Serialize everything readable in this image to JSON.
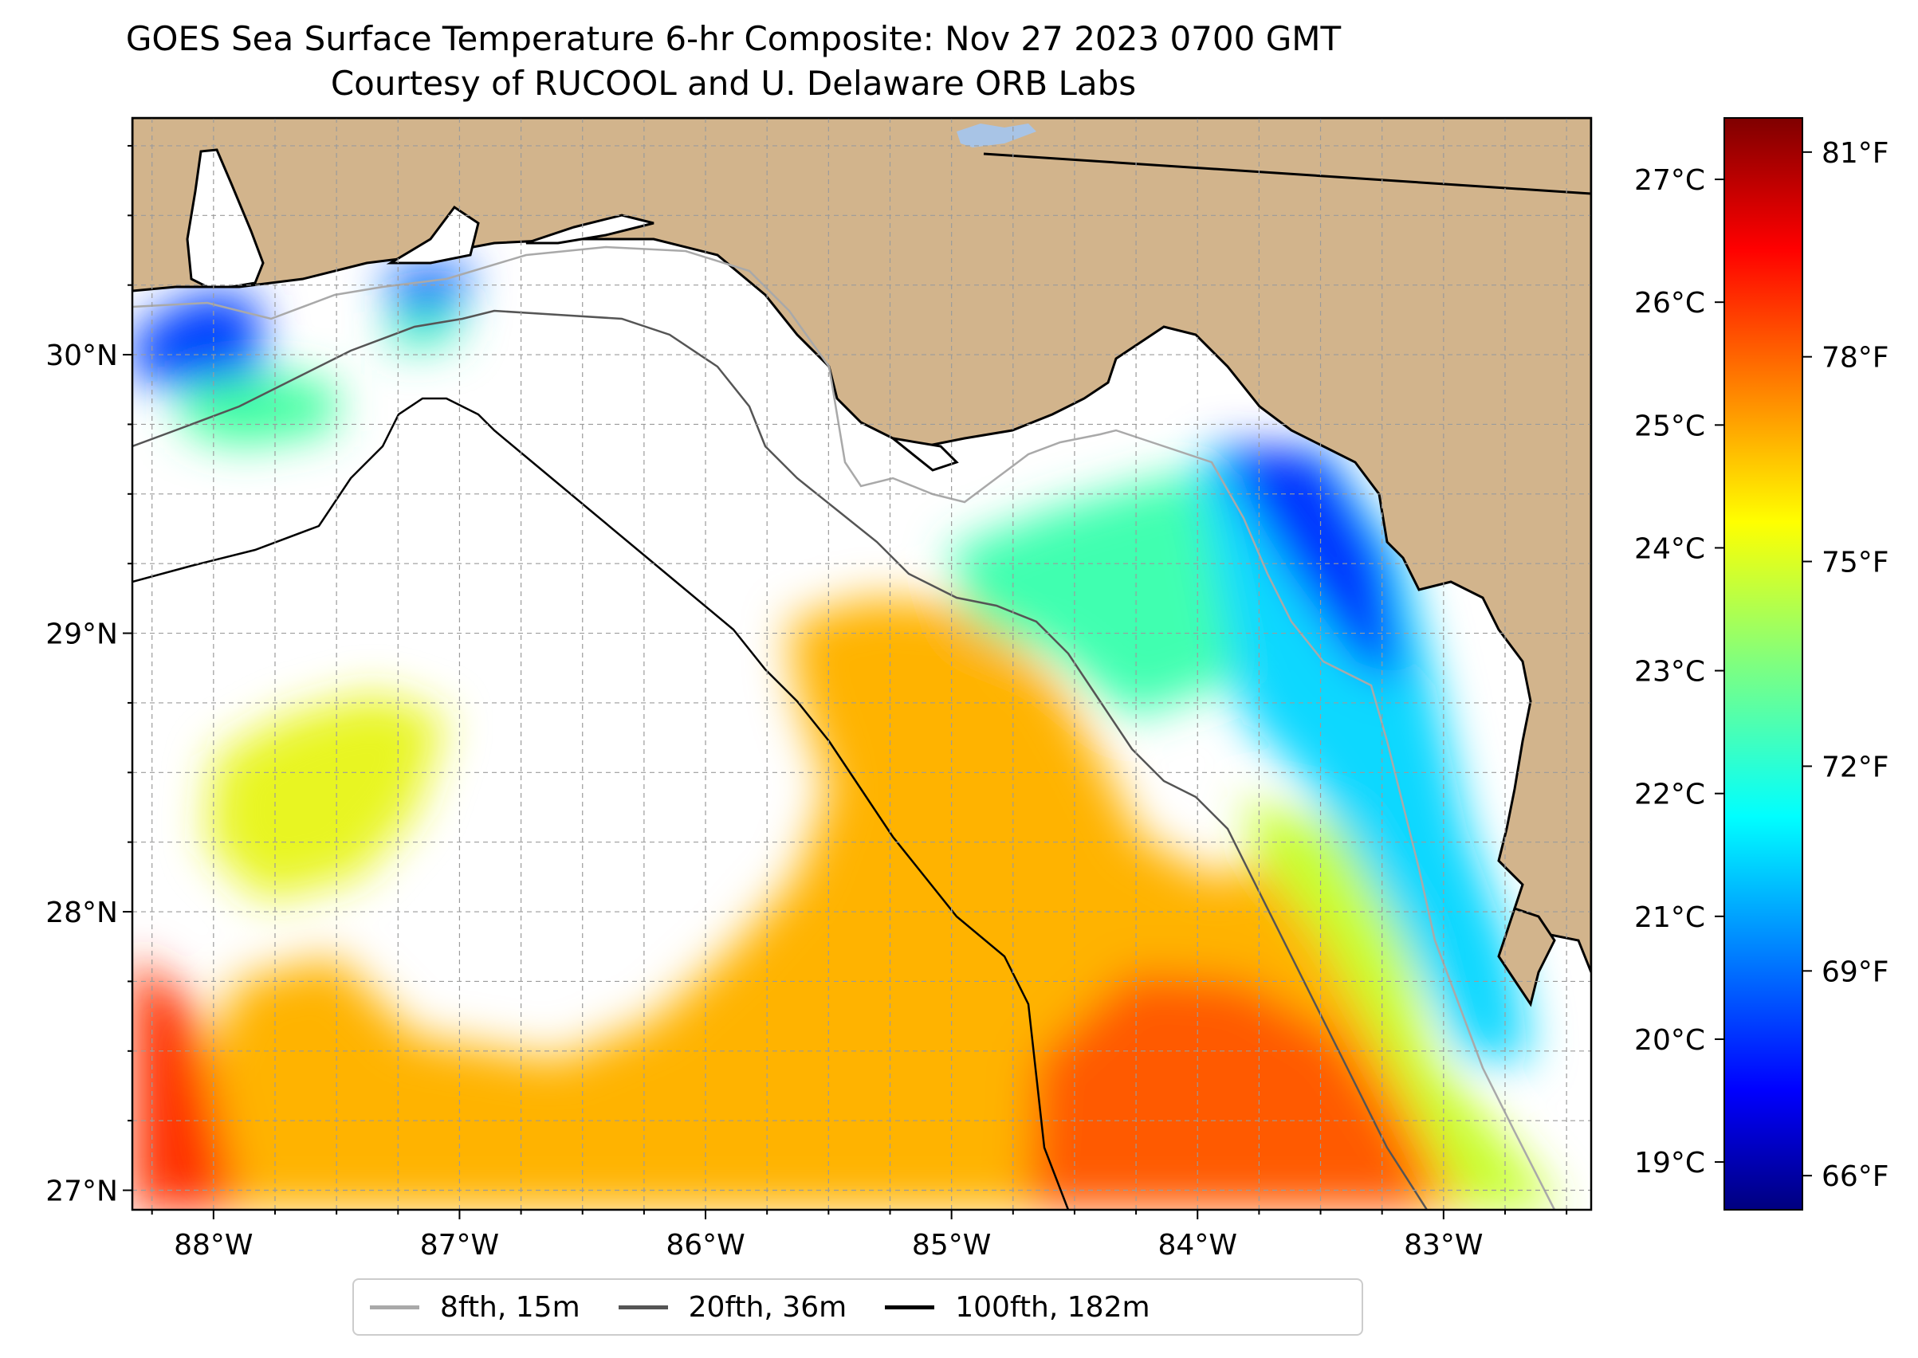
{
  "title": {
    "line1": "GOES Sea Surface Temperature 6-hr Composite: Nov 27 2023 0700 GMT",
    "line2": "Courtesy of RUCOOL and U. Delaware ORB Labs"
  },
  "map": {
    "lon_range": [
      -88.33,
      -82.4
    ],
    "lat_range": [
      26.93,
      30.85
    ],
    "lon_ticks": [
      "88°W",
      "87°W",
      "86°W",
      "85°W",
      "84°W",
      "83°W"
    ],
    "lat_ticks": [
      "27°N",
      "28°N",
      "29°N",
      "30°N"
    ],
    "land_color": "#d2b48c",
    "no_data_color": "#ffffff"
  },
  "legend": {
    "items": [
      {
        "label": "8fth, 15m",
        "color": "#a9a9a9"
      },
      {
        "label": "20fth, 36m",
        "color": "#555555"
      },
      {
        "label": "100fth, 182m",
        "color": "#000000"
      }
    ]
  },
  "colorbar": {
    "colormap": "jet",
    "celsius_ticks": [
      "19°C",
      "20°C",
      "21°C",
      "22°C",
      "23°C",
      "24°C",
      "25°C",
      "26°C",
      "27°C"
    ],
    "fahrenheit_ticks": [
      "66°F",
      "69°F",
      "72°F",
      "75°F",
      "78°F",
      "81°F"
    ],
    "range_f": [
      65.5,
      81.5
    ]
  }
}
